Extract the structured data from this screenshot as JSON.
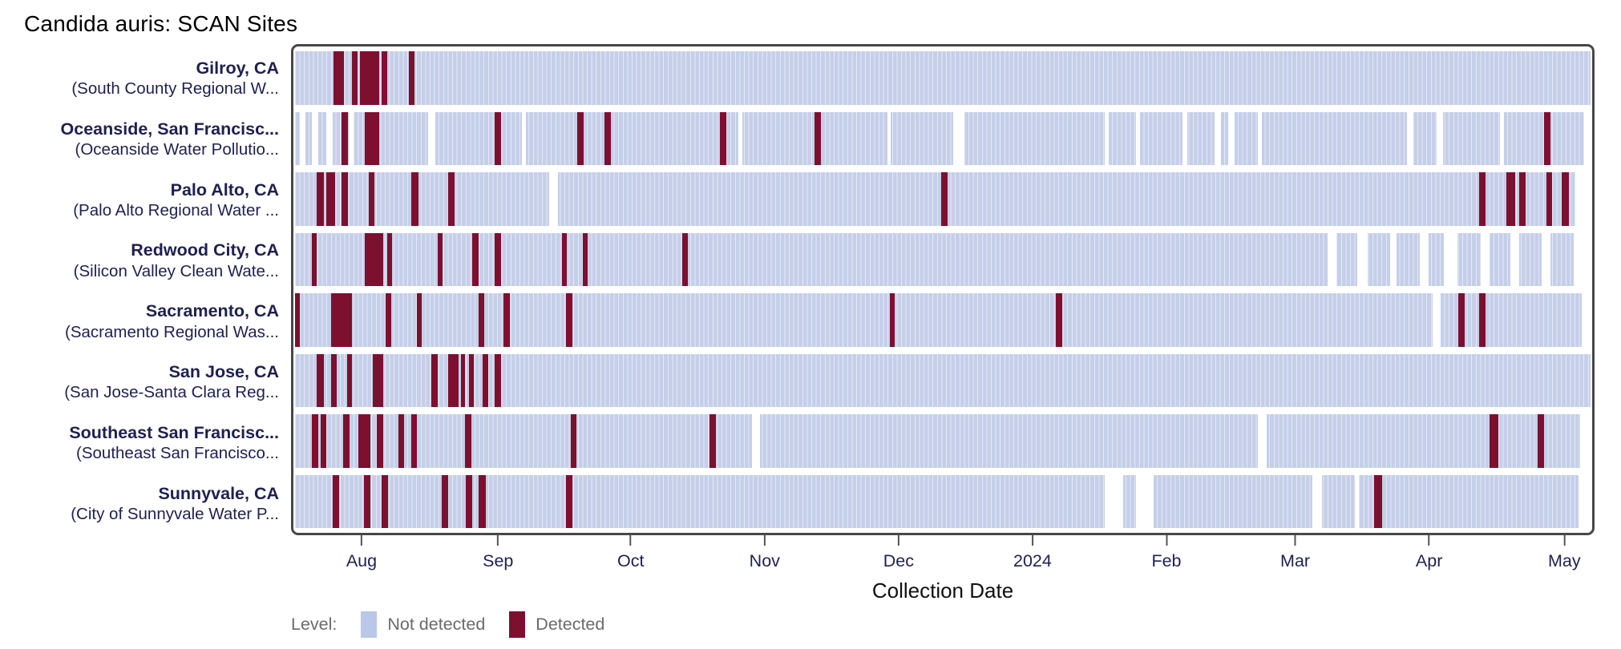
{
  "chart_data": {
    "type": "heatmap",
    "title": "Candida auris: SCAN Sites",
    "xlabel": "Collection Date",
    "x_axis": {
      "ticks": [
        {
          "label": "Aug",
          "pct": 5.3
        },
        {
          "label": "Sep",
          "pct": 15.8
        },
        {
          "label": "Oct",
          "pct": 26.0
        },
        {
          "label": "Nov",
          "pct": 36.3
        },
        {
          "label": "Dec",
          "pct": 46.6
        },
        {
          "label": "2024",
          "pct": 56.9
        },
        {
          "label": "Feb",
          "pct": 67.2
        },
        {
          "label": "Mar",
          "pct": 77.1
        },
        {
          "label": "Apr",
          "pct": 87.4
        },
        {
          "label": "May",
          "pct": 97.8
        }
      ]
    },
    "legend": {
      "title": "Level:",
      "items": [
        {
          "label": "Not detected",
          "color": "#b9c7e8"
        },
        {
          "label": "Detected",
          "color": "#7d0f2f"
        }
      ]
    },
    "colors": {
      "not_detected": "#c5cfe9",
      "detected": "#7d0f2f",
      "no_data": "#ffffff",
      "label_text": "#1e2051",
      "frame_border": "#474747"
    },
    "sites": [
      {
        "label": "Gilroy, CA",
        "sublabel": "(South County Regional W...",
        "detected_pct": [
          [
            3.0,
            3.8
          ],
          [
            4.4,
            4.8
          ],
          [
            5.0,
            6.5
          ],
          [
            6.7,
            7.1
          ],
          [
            8.8,
            9.2
          ]
        ],
        "no_data_pct": []
      },
      {
        "label": "Oceanside, San Francisc...",
        "sublabel": "(Oceanside Water Pollutio...",
        "detected_pct": [
          [
            3.6,
            4.1
          ],
          [
            5.4,
            6.5
          ],
          [
            15.4,
            15.9
          ],
          [
            21.8,
            22.3
          ],
          [
            23.9,
            24.4
          ],
          [
            32.8,
            33.3
          ],
          [
            40.1,
            40.6
          ],
          [
            96.4,
            96.9
          ]
        ],
        "no_data_pct": [
          [
            0.4,
            0.8
          ],
          [
            1.3,
            1.8
          ],
          [
            2.4,
            2.9
          ],
          [
            4.2,
            4.5
          ],
          [
            10.3,
            10.8
          ],
          [
            17.5,
            17.8
          ],
          [
            34.2,
            34.5
          ],
          [
            45.7,
            46.0
          ],
          [
            50.8,
            51.7
          ],
          [
            62.5,
            62.8
          ],
          [
            64.9,
            65.2
          ],
          [
            68.5,
            68.9
          ],
          [
            71.0,
            71.5
          ],
          [
            72.0,
            72.5
          ],
          [
            74.3,
            74.6
          ],
          [
            85.8,
            86.3
          ],
          [
            88.1,
            88.6
          ],
          [
            93.0,
            93.3
          ],
          [
            99.5,
            100
          ]
        ]
      },
      {
        "label": "Palo Alto, CA",
        "sublabel": "(Palo Alto Regional Water ...",
        "detected_pct": [
          [
            1.7,
            2.2
          ],
          [
            2.4,
            3.1
          ],
          [
            3.6,
            4.1
          ],
          [
            5.7,
            6.1
          ],
          [
            9.0,
            9.5
          ],
          [
            11.8,
            12.3
          ],
          [
            49.9,
            50.4
          ],
          [
            91.4,
            91.9
          ],
          [
            93.5,
            94.2
          ],
          [
            94.5,
            95.0
          ],
          [
            96.6,
            97.0
          ],
          [
            97.8,
            98.3
          ]
        ],
        "no_data_pct": [
          [
            19.6,
            20.3
          ],
          [
            98.8,
            100
          ]
        ]
      },
      {
        "label": "Redwood City, CA",
        "sublabel": "(Silicon Valley Clean Wate...",
        "detected_pct": [
          [
            1.3,
            1.7
          ],
          [
            5.4,
            6.8
          ],
          [
            7.1,
            7.5
          ],
          [
            11.0,
            11.4
          ],
          [
            13.7,
            14.2
          ],
          [
            15.4,
            15.9
          ],
          [
            20.6,
            21.0
          ],
          [
            22.2,
            22.6
          ],
          [
            29.9,
            30.3
          ]
        ],
        "no_data_pct": [
          [
            79.7,
            80.4
          ],
          [
            82.0,
            82.8
          ],
          [
            84.5,
            85.0
          ],
          [
            86.8,
            87.5
          ],
          [
            88.7,
            89.7
          ],
          [
            91.5,
            92.2
          ],
          [
            93.8,
            94.5
          ],
          [
            96.2,
            96.9
          ],
          [
            98.7,
            100
          ]
        ]
      },
      {
        "label": "Sacramento, CA",
        "sublabel": "(Sacramento Regional Was...",
        "detected_pct": [
          [
            0.0,
            0.35
          ],
          [
            2.8,
            4.4
          ],
          [
            7.0,
            7.4
          ],
          [
            9.4,
            9.8
          ],
          [
            14.2,
            14.6
          ],
          [
            16.1,
            16.6
          ],
          [
            20.9,
            21.4
          ],
          [
            45.9,
            46.3
          ],
          [
            58.7,
            59.2
          ],
          [
            89.8,
            90.3
          ],
          [
            91.4,
            91.9
          ]
        ],
        "no_data_pct": [
          [
            87.8,
            88.4
          ],
          [
            99.3,
            100
          ]
        ]
      },
      {
        "label": "San Jose, CA",
        "sublabel": "(San Jose-Santa Clara Reg...",
        "detected_pct": [
          [
            1.7,
            2.2
          ],
          [
            2.8,
            3.2
          ],
          [
            4.0,
            4.4
          ],
          [
            6.0,
            6.8
          ],
          [
            10.5,
            11.0
          ],
          [
            11.8,
            12.6
          ],
          [
            12.8,
            13.1
          ],
          [
            13.4,
            13.8
          ],
          [
            14.5,
            14.9
          ],
          [
            15.4,
            15.9
          ]
        ],
        "no_data_pct": []
      },
      {
        "label": "Southeast San Francisc...",
        "sublabel": "(Southeast San Francisco...",
        "detected_pct": [
          [
            1.3,
            1.8
          ],
          [
            2.0,
            2.4
          ],
          [
            3.7,
            4.2
          ],
          [
            4.9,
            5.8
          ],
          [
            6.3,
            6.8
          ],
          [
            8.0,
            8.4
          ],
          [
            9.0,
            9.4
          ],
          [
            13.1,
            13.6
          ],
          [
            21.3,
            21.7
          ],
          [
            32.0,
            32.5
          ],
          [
            92.2,
            92.9
          ],
          [
            95.9,
            96.4
          ]
        ],
        "no_data_pct": [
          [
            35.3,
            35.9
          ],
          [
            74.3,
            75.0
          ],
          [
            99.2,
            100
          ]
        ]
      },
      {
        "label": "Sunnyvale, CA",
        "sublabel": "(City of Sunnyvale Water P...",
        "detected_pct": [
          [
            2.9,
            3.4
          ],
          [
            5.3,
            5.8
          ],
          [
            6.7,
            7.2
          ],
          [
            11.3,
            11.8
          ],
          [
            13.2,
            13.7
          ],
          [
            14.2,
            14.7
          ],
          [
            20.9,
            21.4
          ],
          [
            83.3,
            83.9
          ]
        ],
        "no_data_pct": [
          [
            62.5,
            63.9
          ],
          [
            64.9,
            66.3
          ],
          [
            78.5,
            79.3
          ],
          [
            81.8,
            82.1
          ],
          [
            99.1,
            100
          ]
        ]
      }
    ]
  }
}
